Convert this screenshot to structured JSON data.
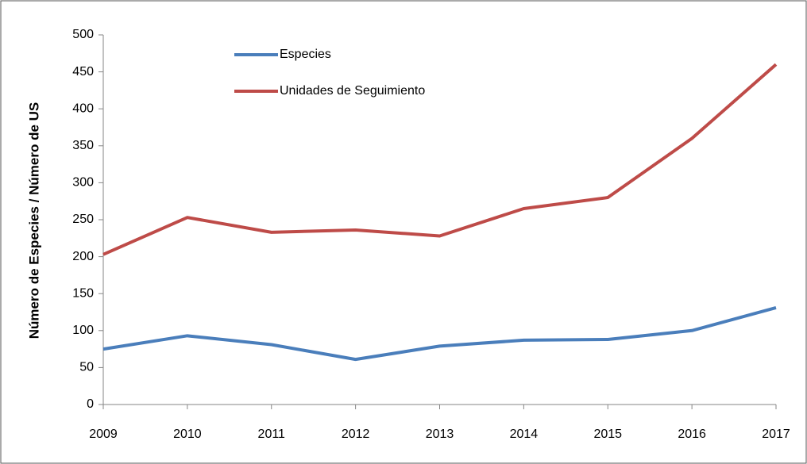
{
  "chart_data": {
    "type": "line",
    "y_label": "Número de Especies / Número de US",
    "x": [
      2009,
      2010,
      2011,
      2012,
      2013,
      2014,
      2015,
      2016,
      2017
    ],
    "xlim": [
      2009,
      2017
    ],
    "xticks": [
      2009,
      2010,
      2011,
      2012,
      2013,
      2014,
      2015,
      2016,
      2017
    ],
    "ylim": [
      0,
      500
    ],
    "yticks": [
      0,
      50,
      100,
      150,
      200,
      250,
      300,
      350,
      400,
      450,
      500
    ],
    "grid": false,
    "legend": "top",
    "series": [
      {
        "name": "Especies",
        "color": "#4a7ebb",
        "values": [
          75,
          93,
          81,
          61,
          79,
          87,
          88,
          100,
          131
        ]
      },
      {
        "name": "Unidades de Seguimiento",
        "color": "#be4b48",
        "values": [
          203,
          253,
          233,
          236,
          228,
          265,
          280,
          360,
          460
        ]
      }
    ]
  }
}
